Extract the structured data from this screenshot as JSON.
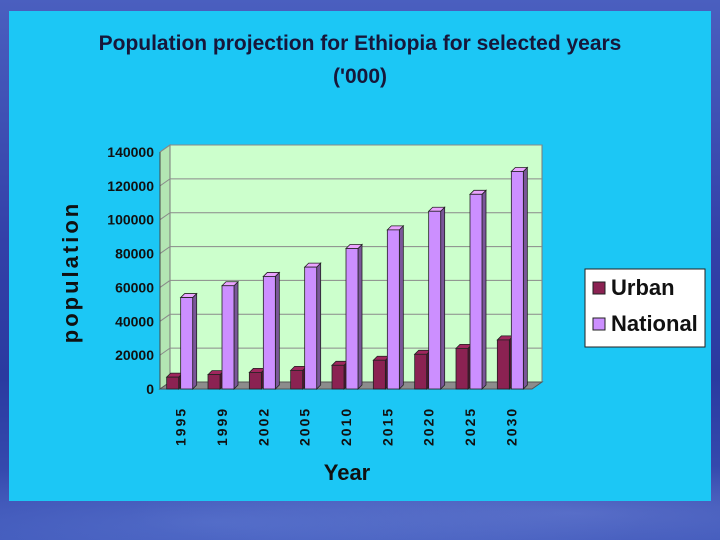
{
  "chart_data": {
    "type": "bar",
    "title": "Population projection for Ethiopia for selected years",
    "subtitle": "('000)",
    "xlabel": "Year",
    "ylabel": "population",
    "categories": [
      "1995",
      "1999",
      "2002",
      "2005",
      "2010",
      "2015",
      "2020",
      "2025",
      "2030"
    ],
    "ylim": [
      0,
      140000
    ],
    "yticks": [
      "0",
      "20000",
      "40000",
      "60000",
      "80000",
      "100000",
      "120000",
      "140000"
    ],
    "grid": true,
    "legend_position": "right",
    "series": [
      {
        "name": "Urban",
        "color": "#8b2252",
        "values": [
          7000,
          8500,
          9800,
          11000,
          14000,
          17000,
          20500,
          24000,
          29000
        ]
      },
      {
        "name": "National",
        "color": "#cc8fff",
        "values": [
          54000,
          61000,
          66500,
          72000,
          83000,
          94000,
          105000,
          115000,
          128500
        ]
      }
    ]
  }
}
